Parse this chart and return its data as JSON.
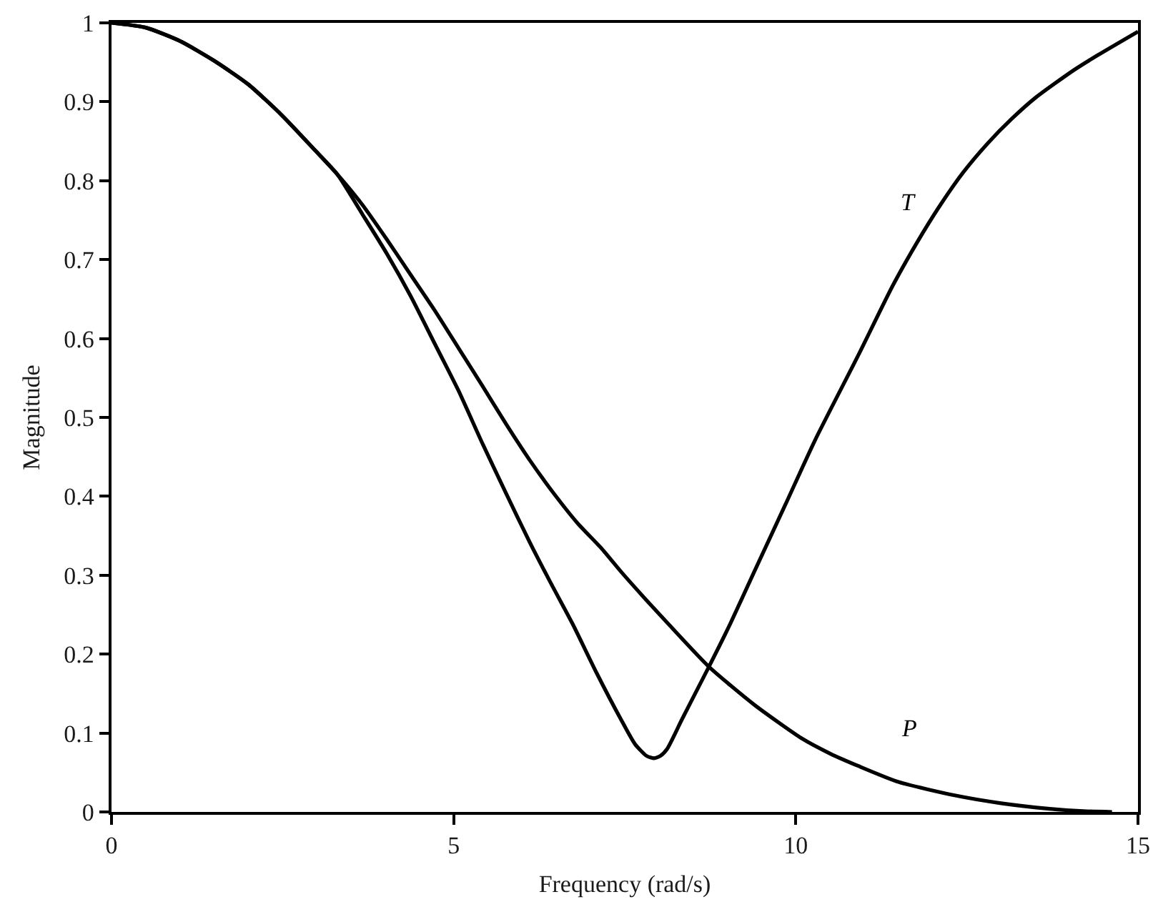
{
  "chart_data": {
    "type": "line",
    "xlabel": "Frequency (rad/s)",
    "ylabel": "Magnitude",
    "xlim": [
      0,
      15
    ],
    "xticks": [
      0,
      5,
      10,
      15
    ],
    "ylim": [
      0,
      1
    ],
    "yticks": [
      0,
      0.1,
      0.2,
      0.3,
      0.4,
      0.5,
      0.6,
      0.7,
      0.8,
      0.9,
      1
    ],
    "series": [
      {
        "name": "T",
        "color": "#000000",
        "x": [
          0,
          0.5,
          1,
          1.5,
          2,
          2.5,
          2.98,
          3.3,
          3.67,
          4.02,
          4.37,
          4.72,
          5.07,
          5.42,
          5.77,
          6.11,
          6.42,
          6.74,
          7.09,
          7.44,
          7.65,
          7.82,
          7.93,
          8.02,
          8.12,
          8.34,
          8.73,
          9.04,
          9.39,
          9.85,
          10.28,
          10.92,
          11.41,
          11.76,
          12.11,
          12.45,
          12.8,
          13.15,
          13.5,
          14.06,
          14.41,
          15
        ],
        "values": [
          1,
          0.994,
          0.977,
          0.952,
          0.922,
          0.882,
          0.838,
          0.808,
          0.757,
          0.708,
          0.654,
          0.594,
          0.534,
          0.467,
          0.403,
          0.342,
          0.29,
          0.238,
          0.176,
          0.118,
          0.086,
          0.071,
          0.068,
          0.071,
          0.08,
          0.118,
          0.184,
          0.238,
          0.304,
          0.39,
          0.471,
          0.58,
          0.666,
          0.72,
          0.769,
          0.811,
          0.847,
          0.878,
          0.905,
          0.94,
          0.959,
          0.989
        ]
      },
      {
        "name": "P",
        "color": "#000000",
        "x": [
          0,
          0.5,
          1,
          1.5,
          2,
          2.5,
          2.98,
          3.3,
          3.67,
          4.02,
          4.37,
          4.72,
          5.07,
          5.42,
          5.77,
          6.11,
          6.46,
          6.81,
          7.16,
          7.45,
          7.8,
          8.14,
          8.73,
          9.39,
          10.09,
          10.5,
          10.92,
          11.5,
          12.32,
          13,
          13.71,
          14.2,
          14.62
        ],
        "values": [
          1,
          0.994,
          0.977,
          0.952,
          0.922,
          0.882,
          0.838,
          0.808,
          0.769,
          0.726,
          0.681,
          0.636,
          0.588,
          0.54,
          0.491,
          0.446,
          0.404,
          0.366,
          0.334,
          0.304,
          0.27,
          0.238,
          0.184,
          0.136,
          0.093,
          0.074,
          0.058,
          0.038,
          0.021,
          0.011,
          0.004,
          0.001,
          0
        ]
      }
    ]
  }
}
